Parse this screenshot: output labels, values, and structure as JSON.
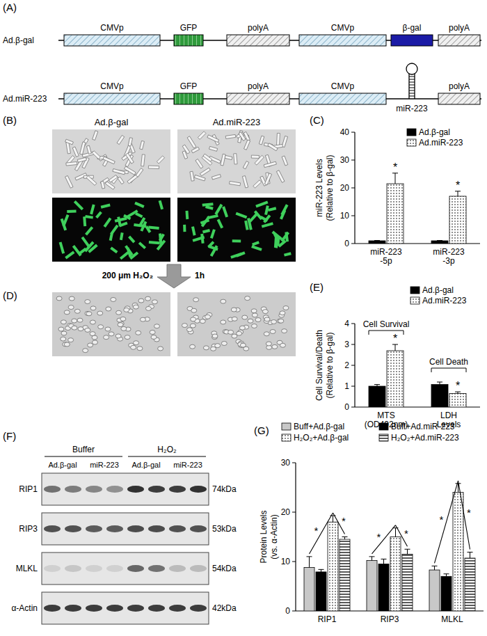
{
  "panels": {
    "A": {
      "label": "(A)",
      "constructs": [
        {
          "name": "Ad.β-gal",
          "elements": [
            {
              "text": "CMVp",
              "kind": "promoter"
            },
            {
              "text": "GFP",
              "kind": "gfp"
            },
            {
              "text": "polyA",
              "kind": "polya"
            },
            {
              "text": "CMVp",
              "kind": "promoter"
            },
            {
              "text": "β-gal",
              "kind": "gene"
            },
            {
              "text": "polyA",
              "kind": "polya"
            }
          ]
        },
        {
          "name": "Ad.miR-223",
          "elements": [
            {
              "text": "CMVp",
              "kind": "promoter"
            },
            {
              "text": "GFP",
              "kind": "gfp"
            },
            {
              "text": "polyA",
              "kind": "polya"
            },
            {
              "text": "CMVp",
              "kind": "promoter"
            },
            {
              "text": "miR-223",
              "kind": "hairpin"
            },
            {
              "text": "polyA",
              "kind": "polya"
            }
          ]
        }
      ]
    },
    "B": {
      "label": "(B)",
      "columns": [
        "Ad.β-gal",
        "Ad.miR-223"
      ]
    },
    "D": {
      "label": "(D)",
      "treatment": "200 μm H₂O₂",
      "time": "1h"
    },
    "F": {
      "label": "(F)",
      "groups": [
        "Buffer",
        "H₂O₂"
      ],
      "lanes": [
        "Ad.β-gal",
        "miR-223",
        "Ad.β-gal",
        "miR-223"
      ],
      "rows": [
        {
          "name": "RIP1",
          "size": "74kDa",
          "bands": [
            0.55,
            0.5,
            0.45,
            0.4,
            0.85,
            0.8,
            0.8,
            0.85
          ]
        },
        {
          "name": "RIP3",
          "size": "53kDa",
          "bands": [
            0.7,
            0.7,
            0.65,
            0.65,
            0.72,
            0.72,
            0.7,
            0.7
          ]
        },
        {
          "name": "MLKL",
          "size": "54kDa",
          "bands": [
            0.1,
            0.15,
            0.1,
            0.1,
            0.6,
            0.55,
            0.2,
            0.2
          ]
        },
        {
          "name": "α-Actin",
          "size": "42kDa",
          "bands": [
            0.8,
            0.8,
            0.8,
            0.8,
            0.8,
            0.8,
            0.8,
            0.8
          ]
        }
      ]
    }
  },
  "chart_data": [
    {
      "type": "bar",
      "panel": "(C)",
      "y_label": [
        "miR-223 Levels",
        "(Relative to β-gal)"
      ],
      "categories": [
        "miR-223 -5p",
        "miR-223 -3p"
      ],
      "series": [
        {
          "name": "Ad.β-gal",
          "color": "#000000",
          "values": [
            1.0,
            1.0
          ],
          "errors": [
            0.1,
            0.1
          ]
        },
        {
          "name": "Ad.miR-223",
          "color": "#000000",
          "values": [
            21.5,
            17.0
          ],
          "errors": [
            3.8,
            1.8
          ],
          "annotations": [
            "*",
            "*"
          ]
        }
      ],
      "ylim": [
        0,
        40
      ],
      "yticks": [
        0,
        10,
        20,
        30,
        40
      ],
      "legend": "top-right"
    },
    {
      "type": "bar",
      "panel": "(E)",
      "y_label": [
        "Cell Survival/Death",
        "(Relative to β-gal)"
      ],
      "categories": [
        "MTS (OD492nm)",
        "LDH Levels"
      ],
      "group_labels": [
        "Cell Survival",
        "Cell Death"
      ],
      "series": [
        {
          "name": "Ad.β-gal",
          "color": "#000000",
          "values": [
            1.0,
            1.08
          ],
          "errors": [
            0.08,
            0.12
          ]
        },
        {
          "name": "Ad.miR-223",
          "color": "#000000",
          "values": [
            2.7,
            0.65
          ],
          "errors": [
            0.3,
            0.08
          ],
          "annotations": [
            "*",
            "*"
          ]
        }
      ],
      "ylim": [
        0,
        4
      ],
      "yticks": [
        0,
        1,
        2,
        3,
        4
      ],
      "legend": "top-right"
    },
    {
      "type": "bar",
      "panel": "(G)",
      "y_label": [
        "Protein Levels",
        "(vs. α-Actin)"
      ],
      "categories": [
        "RIP1",
        "RIP3",
        "MLKL"
      ],
      "series": [
        {
          "name": "Buff+Ad.β-gal",
          "color": "#c8c8c8",
          "values": [
            8.8,
            10.2,
            8.3
          ],
          "errors": [
            2.2,
            0.8,
            0.8
          ]
        },
        {
          "name": "Buff+Ad.miR-223",
          "color": "#000000",
          "values": [
            7.9,
            9.5,
            7.0
          ],
          "errors": [
            0.5,
            1.0,
            0.5
          ]
        },
        {
          "name": "H₂O₂+Ad.β-gal",
          "color": "#000000",
          "values": [
            18.0,
            15.0,
            24.0
          ],
          "errors": [
            1.3,
            1.8,
            1.8
          ]
        },
        {
          "name": "H₂O₂+Ad.miR-223",
          "color": "#000000",
          "values": [
            14.5,
            11.5,
            10.7
          ],
          "errors": [
            0.5,
            1.0,
            1.2
          ]
        }
      ],
      "significance": [
        {
          "from": 0,
          "to": 2,
          "label": "*"
        },
        {
          "from": 2,
          "to": 3,
          "label": "*"
        }
      ],
      "ylim": [
        0,
        30
      ],
      "yticks": [
        0,
        10,
        20,
        30
      ],
      "legend": "top"
    }
  ]
}
